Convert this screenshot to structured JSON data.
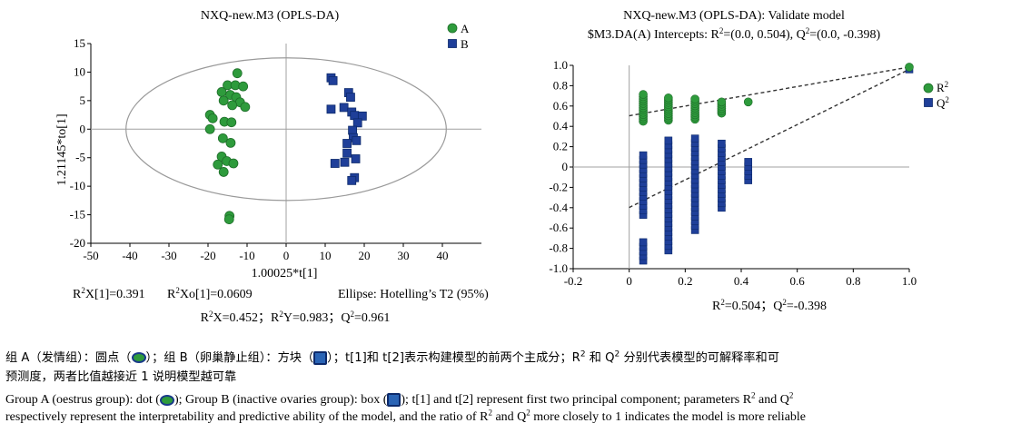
{
  "chart_data": [
    {
      "type": "scatter",
      "title": "NXQ-new.M3 (OPLS-DA)",
      "xlabel": "1.00025*t[1]",
      "ylabel": "1.21145*to[1]",
      "xlim": [
        -50,
        50
      ],
      "ylim": [
        -20,
        15
      ],
      "xticks": [
        -50,
        -40,
        -30,
        -20,
        -10,
        0,
        10,
        20,
        30,
        40
      ],
      "yticks": [
        -20,
        -15,
        -10,
        -5,
        0,
        5,
        10,
        15
      ],
      "legend_position": "top-right",
      "ellipse": {
        "label": "Ellipse: Hotelling’s T2 (95%)",
        "x_radius": 41,
        "y_radius": 12.5
      },
      "series": [
        {
          "name": "A",
          "color": "#2e9b3c",
          "marker": "circle",
          "points": [
            [
              -12.5,
              9.8
            ],
            [
              -15,
              7.7
            ],
            [
              -13,
              7.7
            ],
            [
              -11,
              7.5
            ],
            [
              -16.5,
              6.5
            ],
            [
              -14.3,
              6
            ],
            [
              -12.8,
              5.6
            ],
            [
              -16,
              5
            ],
            [
              -11.8,
              4.7
            ],
            [
              -13.8,
              4.2
            ],
            [
              -10.5,
              3.9
            ],
            [
              -19.5,
              2.5
            ],
            [
              -18.8,
              1.9
            ],
            [
              -15.8,
              1.3
            ],
            [
              -14,
              1.2
            ],
            [
              -19.5,
              0
            ],
            [
              -16.2,
              -1.6
            ],
            [
              -14.2,
              -2.4
            ],
            [
              -16.5,
              -4.8
            ],
            [
              -15.2,
              -5.6
            ],
            [
              -13.5,
              -6
            ],
            [
              -17.5,
              -6.2
            ],
            [
              -16,
              -7.5
            ],
            [
              -14.5,
              -15.2
            ],
            [
              -14.6,
              -15.8
            ]
          ]
        },
        {
          "name": "B",
          "color": "#1f3f99",
          "marker": "square",
          "points": [
            [
              11.5,
              9
            ],
            [
              12,
              8.5
            ],
            [
              16,
              6.4
            ],
            [
              16.5,
              5.6
            ],
            [
              14.8,
              3.8
            ],
            [
              11.5,
              3.5
            ],
            [
              16.8,
              3
            ],
            [
              17.5,
              2.4
            ],
            [
              19.5,
              2.3
            ],
            [
              18.3,
              1.1
            ],
            [
              17,
              -0.2
            ],
            [
              17.2,
              -1.5
            ],
            [
              18,
              -2
            ],
            [
              15.6,
              -2.5
            ],
            [
              15.6,
              -4.2
            ],
            [
              17.8,
              -5.2
            ],
            [
              15,
              -5.8
            ],
            [
              12.5,
              -6
            ],
            [
              17.5,
              -8.5
            ],
            [
              16.8,
              -9
            ]
          ]
        }
      ],
      "stats": {
        "r2x1": "R²X[1]=0.391",
        "r2xo1": "R²Xo[1]=0.0609",
        "summary": "R²X=0.452；R²Y=0.983；Q²=0.961"
      }
    },
    {
      "type": "scatter",
      "title": "NXQ-new.M3 (OPLS-DA): Validate model",
      "subtitle": "$M3.DA(A) Intercepts: R²=(0.0, 0.504), Q²=(0.0, -0.398)",
      "xlim": [
        -0.2,
        1.0
      ],
      "ylim": [
        -1.0,
        1.0
      ],
      "xticks": [
        -0.2,
        0,
        0.2,
        0.4,
        0.6,
        0.8,
        1.0
      ],
      "yticks": [
        -1.0,
        -0.8,
        -0.6,
        -0.4,
        -0.2,
        0,
        0.2,
        0.4,
        0.6,
        0.8,
        1.0
      ],
      "legend_position": "right",
      "series": [
        {
          "name": "R²",
          "color": "#2e9b3c",
          "marker": "circle",
          "columns": [
            {
              "x": 0.05,
              "min": 0.45,
              "max": 0.72
            },
            {
              "x": 0.14,
              "min": 0.46,
              "max": 0.7
            },
            {
              "x": 0.235,
              "min": 0.47,
              "max": 0.68
            },
            {
              "x": 0.33,
              "min": 0.53,
              "max": 0.66
            },
            {
              "x": 0.425,
              "min": 0.64,
              "max": 0.66
            }
          ],
          "end_point": [
            1.0,
            0.983
          ],
          "regression_line": [
            [
              0.0,
              0.504
            ],
            [
              1.0,
              0.983
            ]
          ]
        },
        {
          "name": "Q²",
          "color": "#1f3f99",
          "marker": "square",
          "columns": [
            {
              "x": 0.05,
              "min": -0.92,
              "max": 0.15,
              "gap": [
                -0.5,
                -0.7
              ]
            },
            {
              "x": 0.14,
              "min": -0.82,
              "max": 0.27
            },
            {
              "x": 0.235,
              "min": -0.62,
              "max": 0.28
            },
            {
              "x": 0.33,
              "min": -0.4,
              "max": 0.25
            },
            {
              "x": 0.425,
              "min": -0.13,
              "max": 0.09
            }
          ],
          "end_point": [
            1.0,
            0.961
          ],
          "regression_line": [
            [
              0.0,
              -0.398
            ],
            [
              1.0,
              0.961
            ]
          ]
        }
      ],
      "stats": {
        "summary": "R²=0.504；Q²=-0.398"
      }
    }
  ],
  "caption": {
    "cn_line1_a": "组 A（发情组）：圆点（",
    "cn_line1_b": "）；组 B（卵巢静止组）：方块（",
    "cn_line1_c": "）；t[1]和 t[2]表示构建模型的前两个主成分；R² 和 Q² 分别代表模型的可解释率和可",
    "cn_line2": "预测度，两者比值越接近 1 说明模型越可靠",
    "en_line1_a": "Group A (oestrus group): dot (",
    "en_line1_b": "); Group B (inactive ovaries group): box (",
    "en_line1_c": "); t[1] and t[2] represent first two principal component; parameters R² and Q²",
    "en_line2": "respectively represent the interpretability and predictive ability of the model, and the ratio of R² and Q² more closely to 1 indicates the model is more reliable"
  }
}
